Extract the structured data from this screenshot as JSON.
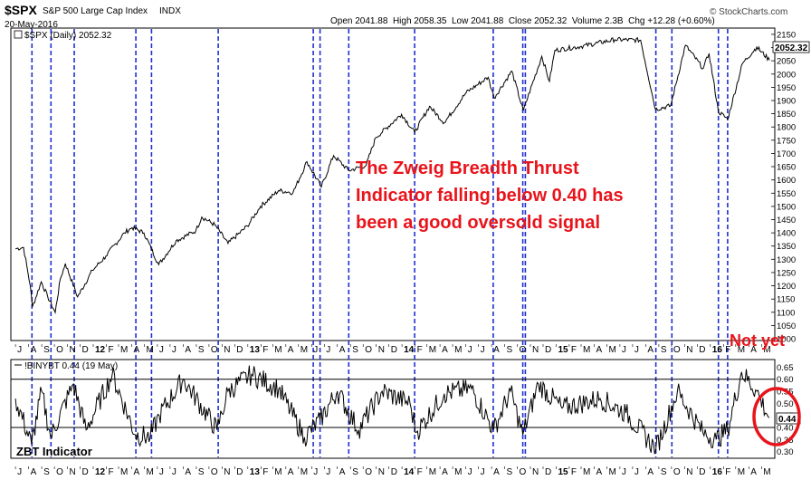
{
  "header": {
    "symbol": "$SPX",
    "name": "S&P 500 Large Cap Index",
    "exchange": "INDX",
    "date": "20-May-2016",
    "ohlc": "Open 2041.88  High 2058.35  Low 2041.88  Close 2052.32  Volume 2.3B  Chg +12.28 (+0.60%)",
    "copyright": "© StockCharts.com"
  },
  "upper_legend": "$SPX (Daily) 2052.32",
  "upper_last_value": "2052.32",
  "lower_legend": "!BINYBT 0.44 (19 May)",
  "lower_last_value": "0.44",
  "annotation": {
    "lines": [
      "The Zweig Breadth Thrust",
      "Indicator falling below 0.40 has",
      "been a good oversold signal"
    ],
    "color": "#e8141b"
  },
  "not_yet": "Not yet",
  "zbt_label": "ZBT Indicator",
  "colors": {
    "price_line": "#000000",
    "signal_line": "#1f2fd0",
    "annotation": "#e8141b",
    "ref_line": "#000000"
  },
  "chart_data": [
    {
      "type": "line",
      "title": "$SPX (Daily) 2052.32",
      "series": [
        {
          "name": "$SPX (Daily)",
          "x": [
            "2011-07-01",
            "2011-07-20",
            "2011-08-05",
            "2011-08-10",
            "2011-08-31",
            "2011-09-15",
            "2011-10-03",
            "2011-10-15",
            "2011-10-27",
            "2011-11-25",
            "2011-12-30",
            "2012-01-31",
            "2012-03-15",
            "2012-04-02",
            "2012-04-30",
            "2012-06-04",
            "2012-07-15",
            "2012-08-31",
            "2012-09-14",
            "2012-10-15",
            "2012-11-15",
            "2012-12-31",
            "2013-01-31",
            "2013-03-15",
            "2013-04-18",
            "2013-05-21",
            "2013-06-24",
            "2013-07-23",
            "2013-08-28",
            "2013-10-08",
            "2013-10-31",
            "2013-12-31",
            "2014-01-31",
            "2014-03-07",
            "2014-04-11",
            "2014-06-02",
            "2014-07-24",
            "2014-08-07",
            "2014-09-18",
            "2014-10-15",
            "2014-11-28",
            "2014-12-16",
            "2014-12-29",
            "2015-02-27",
            "2015-05-20",
            "2015-07-20",
            "2015-08-24",
            "2015-09-29",
            "2015-11-03",
            "2015-12-15",
            "2015-12-29",
            "2016-01-20",
            "2016-02-11",
            "2016-03-17",
            "2016-04-20",
            "2016-05-20"
          ],
          "values": [
            1340,
            1345,
            1200,
            1120,
            1215,
            1160,
            1099,
            1225,
            1284,
            1158,
            1258,
            1312,
            1400,
            1420,
            1400,
            1280,
            1370,
            1408,
            1460,
            1430,
            1360,
            1426,
            1500,
            1560,
            1552,
            1669,
            1573,
            1692,
            1635,
            1655,
            1760,
            1848,
            1780,
            1878,
            1816,
            1930,
            1988,
            1910,
            2011,
            1862,
            2067,
            1972,
            2090,
            2104,
            2130,
            2128,
            1867,
            1880,
            2109,
            2021,
            2078,
            1859,
            1829,
            2040,
            2102,
            2052.32
          ]
        }
      ],
      "xlabel": "",
      "ylabel": "",
      "x_tick_labels": [
        "J",
        "J",
        "A",
        "S",
        "O",
        "N",
        "D",
        "12",
        "F",
        "M",
        "A",
        "M",
        "J",
        "J",
        "A",
        "S",
        "O",
        "N",
        "D",
        "13",
        "F",
        "M",
        "A",
        "M",
        "J",
        "J",
        "A",
        "S",
        "O",
        "N",
        "D",
        "14",
        "F",
        "M",
        "A",
        "M",
        "J",
        "J",
        "A",
        "S",
        "O",
        "N",
        "D",
        "15",
        "F",
        "M",
        "A",
        "M",
        "J",
        "J",
        "A",
        "S",
        "O",
        "N",
        "D",
        "16",
        "F",
        "M",
        "A",
        "M"
      ],
      "y_tick_labels": [
        "1000",
        "1050",
        "1100",
        "1150",
        "1200",
        "1250",
        "1300",
        "1350",
        "1400",
        "1450",
        "1500",
        "1550",
        "1600",
        "1650",
        "1700",
        "1750",
        "1800",
        "1850",
        "1900",
        "1950",
        "2000",
        "2050",
        "2100",
        "2150"
      ],
      "ylim": [
        1000,
        2160
      ],
      "grid": false,
      "legend": "top-left"
    },
    {
      "type": "line",
      "title": "!BINYBT 0.44 (19 May)",
      "series": [
        {
          "name": "!BINYBT",
          "x": [
            "2011-07-01",
            "2011-08-08",
            "2011-09-01",
            "2011-09-22",
            "2011-11-15",
            "2011-12-15",
            "2012-02-15",
            "2012-04-10",
            "2012-05-15",
            "2012-06-05",
            "2012-08-01",
            "2012-10-20",
            "2012-11-15",
            "2013-01-10",
            "2013-03-15",
            "2013-05-15",
            "2013-06-21",
            "2013-08-01",
            "2013-09-20",
            "2013-11-15",
            "2014-01-20",
            "2014-02-04",
            "2014-04-11",
            "2014-06-15",
            "2014-08-06",
            "2014-09-15",
            "2014-10-14",
            "2014-11-20",
            "2015-01-15",
            "2015-04-15",
            "2015-06-15",
            "2015-08-25",
            "2015-10-15",
            "2015-12-14",
            "2016-01-15",
            "2016-02-11",
            "2016-03-15",
            "2016-04-20",
            "2016-05-19"
          ],
          "values": [
            0.52,
            0.33,
            0.55,
            0.36,
            0.58,
            0.39,
            0.62,
            0.37,
            0.36,
            0.45,
            0.6,
            0.39,
            0.55,
            0.62,
            0.56,
            0.36,
            0.43,
            0.55,
            0.39,
            0.55,
            0.5,
            0.38,
            0.54,
            0.56,
            0.39,
            0.55,
            0.37,
            0.58,
            0.48,
            0.52,
            0.46,
            0.31,
            0.55,
            0.38,
            0.35,
            0.39,
            0.63,
            0.55,
            0.44
          ]
        }
      ],
      "reference_lines": [
        0.6,
        0.4
      ],
      "x_tick_labels": [
        "J",
        "J",
        "A",
        "S",
        "O",
        "N",
        "D",
        "12",
        "F",
        "M",
        "A",
        "M",
        "J",
        "J",
        "A",
        "S",
        "O",
        "N",
        "D",
        "13",
        "F",
        "M",
        "A",
        "M",
        "J",
        "J",
        "A",
        "S",
        "O",
        "N",
        "D",
        "14",
        "F",
        "M",
        "A",
        "M",
        "J",
        "J",
        "A",
        "S",
        "O",
        "N",
        "D",
        "15",
        "F",
        "M",
        "A",
        "M",
        "J",
        "J",
        "A",
        "S",
        "O",
        "N",
        "D",
        "16",
        "F",
        "M",
        "A",
        "M"
      ],
      "y_tick_labels": [
        "0.30",
        "0.35",
        "0.40",
        "0.45",
        "0.50",
        "0.55",
        "0.60",
        "0.65"
      ],
      "ylim": [
        0.28,
        0.67
      ],
      "signal_dates": [
        "2011-08-09",
        "2011-09-23",
        "2011-11-17",
        "2012-04-11",
        "2012-05-18",
        "2012-10-23",
        "2013-06-05",
        "2013-06-21",
        "2013-08-28",
        "2014-01-31",
        "2014-08-05",
        "2014-10-14",
        "2014-10-20",
        "2015-08-25",
        "2015-10-02",
        "2016-01-20",
        "2016-02-11"
      ],
      "grid": false,
      "legend": "top-left"
    }
  ]
}
